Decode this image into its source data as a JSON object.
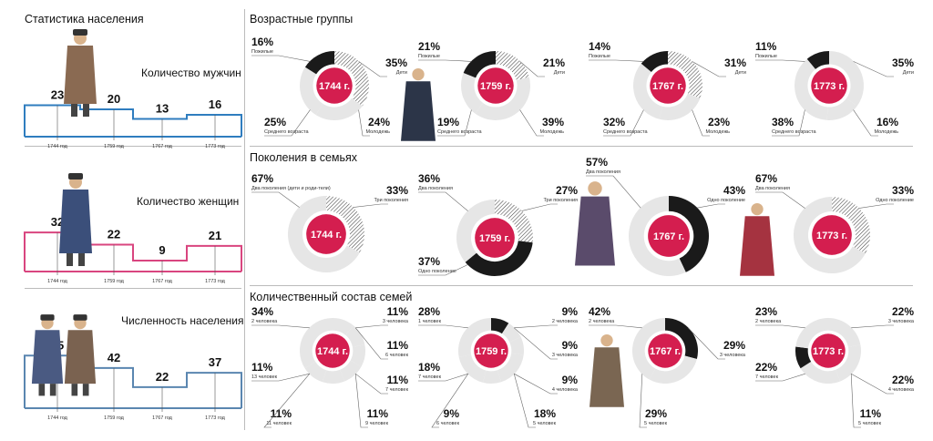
{
  "left": {
    "title": "Статистика населения",
    "years": [
      "1744 год",
      "1759 год",
      "1767 год",
      "1773 год"
    ],
    "men": {
      "label": "Количество мужчин",
      "values": [
        23,
        20,
        13,
        16
      ],
      "color": "#2f7dbf"
    },
    "women": {
      "label": "Количество женщин",
      "values": [
        32,
        22,
        9,
        21
      ],
      "color": "#d9457f"
    },
    "total": {
      "label": "Численность населения",
      "values": [
        55,
        42,
        22,
        37
      ],
      "color": "#5a86b0"
    }
  },
  "sections": {
    "age": "Возрастные группы",
    "gen": "Поколения в семьях",
    "fam": "Количественный состав семей"
  },
  "colors": {
    "center": "#d41e4f",
    "ring_bg": "#e6e6e6",
    "dark": "#1a1a1a"
  },
  "chart_data": [
    {
      "type": "bar",
      "title": "Количество мужчин",
      "categories": [
        "1744 год",
        "1759 год",
        "1767 год",
        "1773 год"
      ],
      "values": [
        23,
        20,
        13,
        16
      ]
    },
    {
      "type": "bar",
      "title": "Количество женщин",
      "categories": [
        "1744 год",
        "1759 год",
        "1767 год",
        "1773 год"
      ],
      "values": [
        32,
        22,
        9,
        21
      ]
    },
    {
      "type": "bar",
      "title": "Численность населения",
      "categories": [
        "1744 год",
        "1759 год",
        "1767 год",
        "1773 год"
      ],
      "values": [
        55,
        42,
        22,
        37
      ]
    },
    {
      "type": "pie",
      "title": "Возрастные группы",
      "year": "1744 г.",
      "slices": [
        {
          "value": "16%",
          "label": "Пожилые",
          "style": "black"
        },
        {
          "value": "35%",
          "label": "Дети",
          "style": "hatch"
        },
        {
          "value": "24%",
          "label": "Молодежь",
          "style": "light"
        },
        {
          "value": "25%",
          "label": "Среднего возраста",
          "style": "light"
        }
      ]
    },
    {
      "type": "pie",
      "title": "Возрастные группы",
      "year": "1759 г.",
      "slices": [
        {
          "value": "21%",
          "label": "Пожилые",
          "style": "light"
        },
        {
          "value": "21%",
          "label": "Дети",
          "style": "hatch"
        },
        {
          "value": "39%",
          "label": "Молодежь",
          "style": "light"
        },
        {
          "value": "19%",
          "label": "Среднего возраста",
          "style": "black"
        }
      ]
    },
    {
      "type": "pie",
      "title": "Возрастные группы",
      "year": "1767 г.",
      "slices": [
        {
          "value": "14%",
          "label": "Пожилые",
          "style": "black"
        },
        {
          "value": "31%",
          "label": "Дети",
          "style": "hatch"
        },
        {
          "value": "23%",
          "label": "Молодежь",
          "style": "light"
        },
        {
          "value": "32%",
          "label": "Среднего возраста",
          "style": "light"
        }
      ]
    },
    {
      "type": "pie",
      "title": "Возрастные группы",
      "year": "1773 г.",
      "slices": [
        {
          "value": "11%",
          "label": "Пожилые",
          "style": "black"
        },
        {
          "value": "35%",
          "label": "Дети",
          "style": "light"
        },
        {
          "value": "16%",
          "label": "Молодежь",
          "style": "light"
        },
        {
          "value": "38%",
          "label": "Среднего возраста",
          "style": "light"
        }
      ]
    },
    {
      "type": "pie",
      "title": "Поколения в семьях",
      "year": "1744 г.",
      "slices": [
        {
          "value": "67%",
          "label": "Два поколения (дети и роди-тели)",
          "style": "light"
        },
        {
          "value": "33%",
          "label": "Три поколения",
          "style": "hatch"
        }
      ]
    },
    {
      "type": "pie",
      "title": "Поколения в семьях",
      "year": "1759 г.",
      "slices": [
        {
          "value": "36%",
          "label": "Два поколения",
          "style": "light"
        },
        {
          "value": "27%",
          "label": "Три поколения",
          "style": "hatch"
        },
        {
          "value": "37%",
          "label": "Одно поколение",
          "style": "black"
        }
      ]
    },
    {
      "type": "pie",
      "title": "Поколения в семьях",
      "year": "1767 г.",
      "slices": [
        {
          "value": "57%",
          "label": "Два поколения",
          "style": "light"
        },
        {
          "value": "43%",
          "label": "Одно поколение",
          "style": "black"
        }
      ]
    },
    {
      "type": "pie",
      "title": "Поколения в семьях",
      "year": "1773 г.",
      "slices": [
        {
          "value": "67%",
          "label": "Два поколения",
          "style": "light"
        },
        {
          "value": "33%",
          "label": "Одно поколение",
          "style": "hatch"
        }
      ]
    },
    {
      "type": "pie",
      "title": "Количественный состав семей",
      "year": "1744 г.",
      "slices": [
        {
          "value": "34%",
          "label": "2 человека",
          "style": "light"
        },
        {
          "value": "11%",
          "label": "3 человека",
          "style": "light"
        },
        {
          "value": "11%",
          "label": "6 человек",
          "style": "light"
        },
        {
          "value": "11%",
          "label": "7 человек",
          "style": "light"
        },
        {
          "value": "11%",
          "label": "9 человек",
          "style": "light"
        },
        {
          "value": "11%",
          "label": "11 человек",
          "style": "light"
        },
        {
          "value": "11%",
          "label": "13 человек",
          "style": "light"
        }
      ]
    },
    {
      "type": "pie",
      "title": "Количественный состав семей",
      "year": "1759 г.",
      "slices": [
        {
          "value": "28%",
          "label": "1 человек",
          "style": "light"
        },
        {
          "value": "9%",
          "label": "2 человека",
          "style": "black"
        },
        {
          "value": "9%",
          "label": "3 человека",
          "style": "light"
        },
        {
          "value": "9%",
          "label": "4 человека",
          "style": "light"
        },
        {
          "value": "18%",
          "label": "5 человек",
          "style": "light"
        },
        {
          "value": "9%",
          "label": "6 человек",
          "style": "light"
        },
        {
          "value": "18%",
          "label": "7 человек",
          "style": "light"
        }
      ]
    },
    {
      "type": "pie",
      "title": "Количественный состав семей",
      "year": "1767 г.",
      "slices": [
        {
          "value": "42%",
          "label": "2 человека",
          "style": "light"
        },
        {
          "value": "29%",
          "label": "3 человека",
          "style": "black"
        },
        {
          "value": "29%",
          "label": "5 человек",
          "style": "light"
        }
      ]
    },
    {
      "type": "pie",
      "title": "Количественный состав семей",
      "year": "1773 г.",
      "slices": [
        {
          "value": "23%",
          "label": "2 человека",
          "style": "light"
        },
        {
          "value": "22%",
          "label": "3 человека",
          "style": "light"
        },
        {
          "value": "22%",
          "label": "4 человека",
          "style": "light"
        },
        {
          "value": "11%",
          "label": "5 человек",
          "style": "black"
        },
        {
          "value": "22%",
          "label": "7 человек",
          "style": "light"
        }
      ]
    }
  ]
}
